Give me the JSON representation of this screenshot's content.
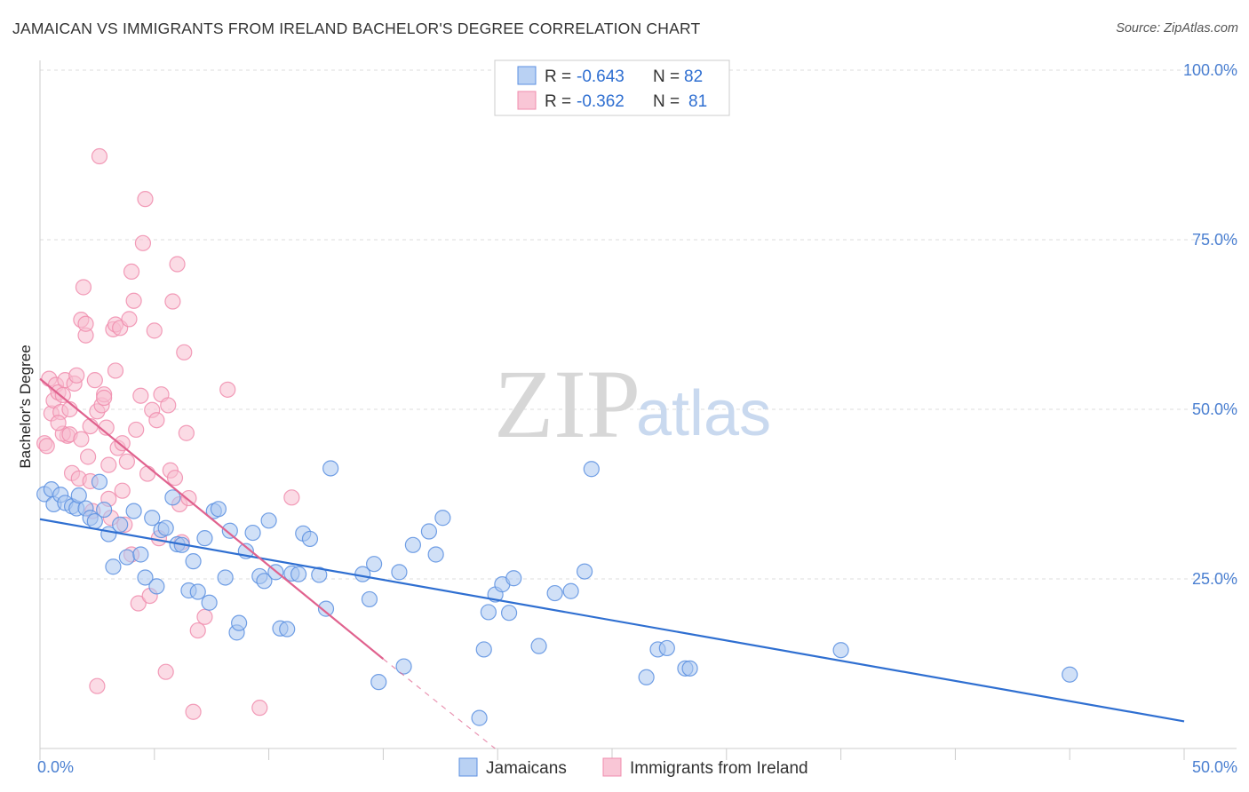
{
  "title": "JAMAICAN VS IMMIGRANTS FROM IRELAND BACHELOR'S DEGREE CORRELATION CHART",
  "source": "Source: ZipAtlas.com",
  "watermark": {
    "zip": "ZIP",
    "atlas": "atlas"
  },
  "colors": {
    "jamaicans": "#5b8fe0",
    "jamaicans_fill": "#a9c6f0",
    "ireland": "#f08cad",
    "ireland_fill": "#f7bdd0",
    "line_blue": "#2f6fd1",
    "line_pink": "#e0628e",
    "tick_text": "#4a7fd1",
    "grid": "#dddddd"
  },
  "legend": {
    "r_label": "R =",
    "n_label": "N =",
    "rows": [
      {
        "r": "-0.643",
        "n": "82"
      },
      {
        "r": "-0.362",
        "n": "81"
      }
    ]
  },
  "chart_data": {
    "type": "scatter",
    "title": "JAMAICAN VS IMMIGRANTS FROM IRELAND BACHELOR'S DEGREE CORRELATION CHART",
    "xlabel": "",
    "ylabel": "Bachelor's Degree",
    "xlim": [
      0,
      50
    ],
    "ylim": [
      0,
      100
    ],
    "x_ticks": [
      "0.0%",
      "50.0%"
    ],
    "y_ticks": [
      "25.0%",
      "50.0%",
      "75.0%",
      "100.0%"
    ],
    "y_tick_values": [
      25,
      50,
      75,
      100
    ],
    "grid": true,
    "legend_position": "top-center",
    "series": [
      {
        "name": "Jamaicans",
        "r": -0.643,
        "n": 82,
        "trend": {
          "x": [
            0,
            50
          ],
          "y": [
            33.8,
            4.0
          ]
        },
        "points": [
          [
            0.2,
            37.5
          ],
          [
            0.5,
            38.2
          ],
          [
            0.6,
            36.0
          ],
          [
            0.9,
            37.4
          ],
          [
            1.1,
            36.2
          ],
          [
            1.4,
            35.7
          ],
          [
            1.6,
            35.4
          ],
          [
            1.7,
            37.3
          ],
          [
            2.0,
            35.4
          ],
          [
            2.2,
            34.0
          ],
          [
            2.4,
            33.5
          ],
          [
            2.6,
            39.3
          ],
          [
            2.8,
            35.2
          ],
          [
            3.0,
            31.6
          ],
          [
            3.2,
            26.8
          ],
          [
            3.5,
            33.0
          ],
          [
            3.8,
            28.2
          ],
          [
            4.1,
            35.0
          ],
          [
            4.4,
            28.6
          ],
          [
            4.6,
            25.2
          ],
          [
            4.9,
            34.0
          ],
          [
            5.1,
            23.9
          ],
          [
            5.3,
            32.2
          ],
          [
            5.5,
            32.5
          ],
          [
            5.8,
            37.0
          ],
          [
            6.0,
            30.1
          ],
          [
            6.2,
            30.0
          ],
          [
            6.5,
            23.3
          ],
          [
            6.7,
            27.6
          ],
          [
            6.9,
            23.1
          ],
          [
            7.2,
            31.0
          ],
          [
            7.4,
            21.5
          ],
          [
            7.6,
            35.0
          ],
          [
            7.8,
            35.3
          ],
          [
            8.1,
            25.2
          ],
          [
            8.3,
            32.1
          ],
          [
            8.6,
            17.1
          ],
          [
            8.7,
            18.5
          ],
          [
            9.0,
            29.1
          ],
          [
            9.3,
            31.8
          ],
          [
            9.6,
            25.4
          ],
          [
            9.8,
            24.7
          ],
          [
            10.0,
            33.6
          ],
          [
            10.3,
            26.0
          ],
          [
            10.5,
            17.7
          ],
          [
            10.8,
            17.6
          ],
          [
            11.0,
            25.8
          ],
          [
            11.3,
            25.7
          ],
          [
            11.5,
            31.7
          ],
          [
            11.8,
            30.9
          ],
          [
            12.2,
            25.6
          ],
          [
            12.5,
            20.6
          ],
          [
            12.7,
            41.3
          ],
          [
            14.1,
            25.7
          ],
          [
            14.4,
            22.0
          ],
          [
            14.6,
            27.2
          ],
          [
            14.8,
            9.8
          ],
          [
            15.7,
            26.0
          ],
          [
            15.9,
            12.1
          ],
          [
            16.3,
            30.0
          ],
          [
            17.0,
            32.0
          ],
          [
            17.3,
            28.6
          ],
          [
            17.6,
            34.0
          ],
          [
            19.2,
            4.5
          ],
          [
            19.4,
            14.6
          ],
          [
            19.6,
            20.1
          ],
          [
            19.9,
            22.7
          ],
          [
            20.2,
            24.2
          ],
          [
            20.5,
            20.0
          ],
          [
            20.7,
            25.1
          ],
          [
            21.8,
            15.1
          ],
          [
            22.5,
            22.9
          ],
          [
            23.2,
            23.2
          ],
          [
            23.8,
            26.1
          ],
          [
            24.1,
            41.2
          ],
          [
            26.5,
            10.5
          ],
          [
            27.0,
            14.6
          ],
          [
            27.4,
            14.8
          ],
          [
            28.2,
            11.8
          ],
          [
            28.4,
            11.8
          ],
          [
            35.0,
            14.5
          ],
          [
            45.0,
            10.9
          ]
        ]
      },
      {
        "name": "Immigrants from Ireland",
        "r": -0.362,
        "n": 81,
        "trend": {
          "x": [
            0,
            15
          ],
          "y": [
            54.5,
            13.2
          ]
        },
        "trend_dashed": {
          "x": [
            15,
            21
          ],
          "y": [
            13.2,
            -3.0
          ]
        },
        "points": [
          [
            0.2,
            45.0
          ],
          [
            0.3,
            44.6
          ],
          [
            0.4,
            54.5
          ],
          [
            0.5,
            49.4
          ],
          [
            0.6,
            51.3
          ],
          [
            0.7,
            53.6
          ],
          [
            0.8,
            52.5
          ],
          [
            0.9,
            49.6
          ],
          [
            1.0,
            52.1
          ],
          [
            1.1,
            54.3
          ],
          [
            1.2,
            46.1
          ],
          [
            1.3,
            50.0
          ],
          [
            1.4,
            40.6
          ],
          [
            1.5,
            53.8
          ],
          [
            1.6,
            55.0
          ],
          [
            1.7,
            39.8
          ],
          [
            1.8,
            63.2
          ],
          [
            1.9,
            68.0
          ],
          [
            2.0,
            60.9
          ],
          [
            2.1,
            43.0
          ],
          [
            2.2,
            47.5
          ],
          [
            2.3,
            35.0
          ],
          [
            2.4,
            54.3
          ],
          [
            2.5,
            49.7
          ],
          [
            2.6,
            87.3
          ],
          [
            2.7,
            50.6
          ],
          [
            2.8,
            52.2
          ],
          [
            2.9,
            47.3
          ],
          [
            3.0,
            36.8
          ],
          [
            3.1,
            34.0
          ],
          [
            3.2,
            61.8
          ],
          [
            3.3,
            62.5
          ],
          [
            3.4,
            44.3
          ],
          [
            3.5,
            62.0
          ],
          [
            3.6,
            45.0
          ],
          [
            3.7,
            33.0
          ],
          [
            3.8,
            42.3
          ],
          [
            3.9,
            63.3
          ],
          [
            4.0,
            70.3
          ],
          [
            4.1,
            66.0
          ],
          [
            4.2,
            47.0
          ],
          [
            4.3,
            21.4
          ],
          [
            4.4,
            52.0
          ],
          [
            4.5,
            74.5
          ],
          [
            4.6,
            81.0
          ],
          [
            4.7,
            40.5
          ],
          [
            4.8,
            22.5
          ],
          [
            4.9,
            49.9
          ],
          [
            5.0,
            61.6
          ],
          [
            5.1,
            48.4
          ],
          [
            5.3,
            52.2
          ],
          [
            5.5,
            11.3
          ],
          [
            5.6,
            50.6
          ],
          [
            5.7,
            41.0
          ],
          [
            5.8,
            65.9
          ],
          [
            5.9,
            39.9
          ],
          [
            6.0,
            71.4
          ],
          [
            6.1,
            36.0
          ],
          [
            6.2,
            30.4
          ],
          [
            6.3,
            58.4
          ],
          [
            6.4,
            46.5
          ],
          [
            6.5,
            36.9
          ],
          [
            6.7,
            5.4
          ],
          [
            6.9,
            17.4
          ],
          [
            7.2,
            19.4
          ],
          [
            8.2,
            52.9
          ],
          [
            9.6,
            6.0
          ],
          [
            11.0,
            37.0
          ],
          [
            2.5,
            9.2
          ],
          [
            3.6,
            38.0
          ],
          [
            1.0,
            46.4
          ],
          [
            1.3,
            46.3
          ],
          [
            2.0,
            62.6
          ],
          [
            2.8,
            51.7
          ],
          [
            3.3,
            55.7
          ],
          [
            4.0,
            28.6
          ],
          [
            0.8,
            48.0
          ],
          [
            1.8,
            45.6
          ],
          [
            2.2,
            39.4
          ],
          [
            3.0,
            41.8
          ],
          [
            5.2,
            31.0
          ]
        ]
      }
    ]
  },
  "bottom_legend": [
    {
      "label": "Jamaicans"
    },
    {
      "label": "Immigrants from Ireland"
    }
  ]
}
